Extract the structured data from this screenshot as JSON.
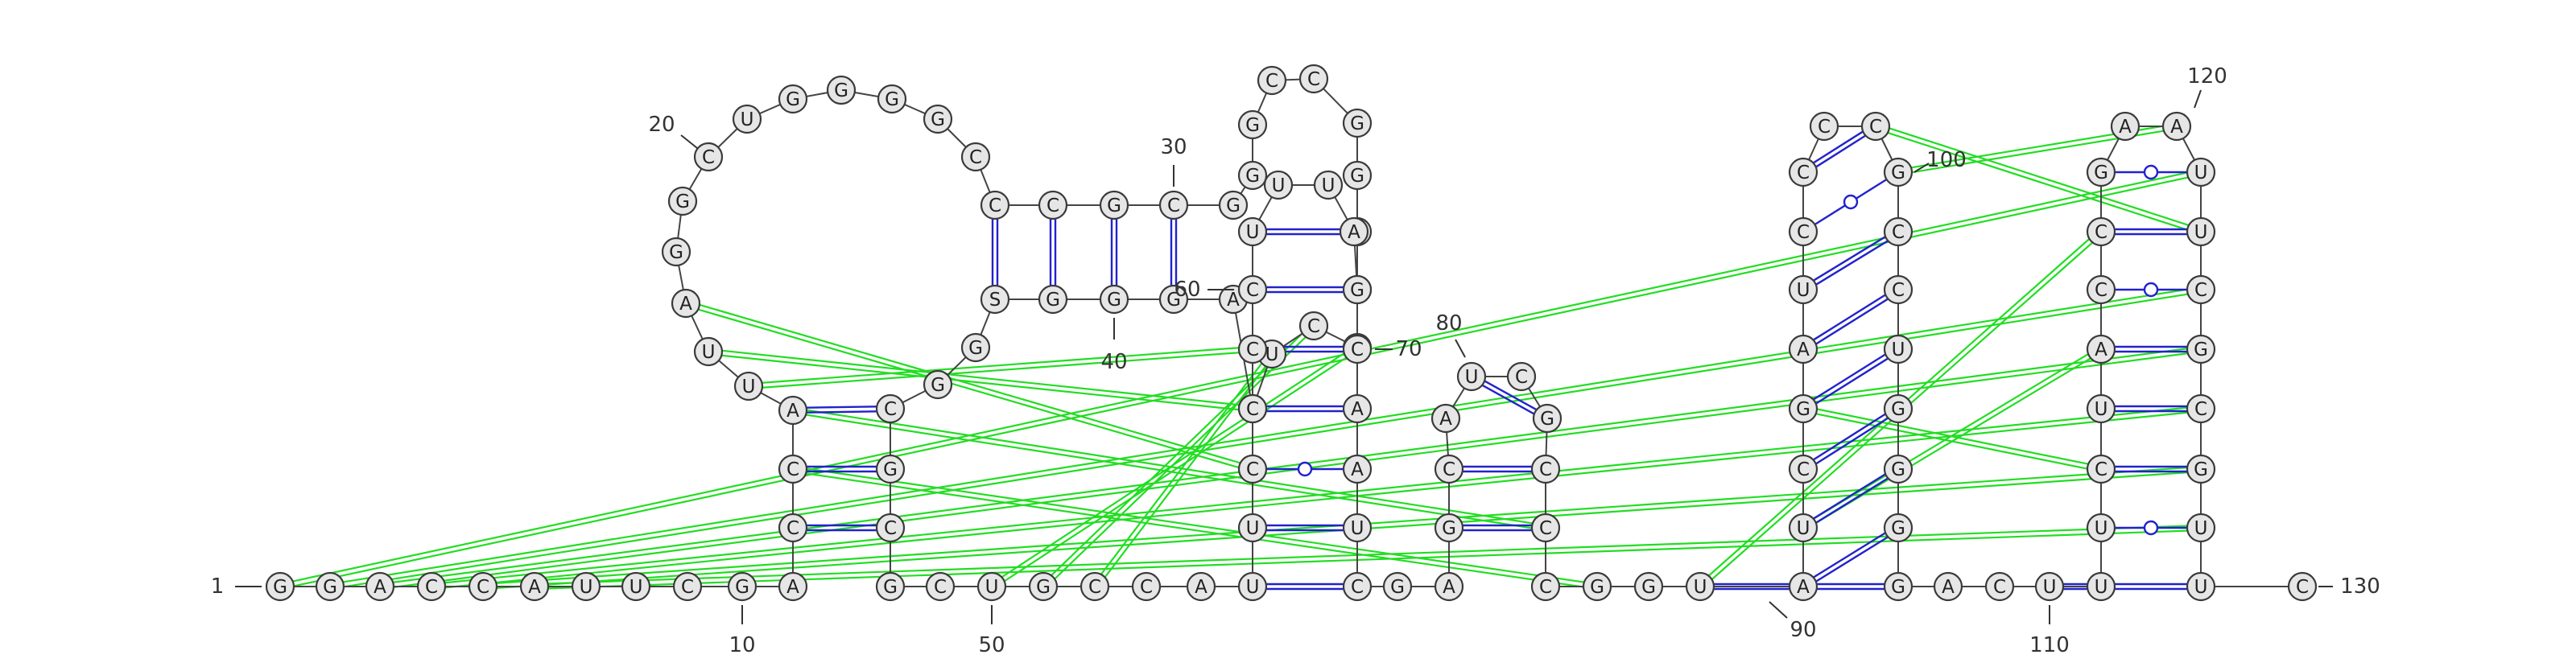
{
  "sequence": [
    "G",
    "G",
    "A",
    "C",
    "C",
    "A",
    "U",
    "U",
    "C",
    "G",
    "A",
    "C",
    "C",
    "A",
    "U",
    "U",
    "A",
    "G",
    "G",
    "C",
    "U",
    "G",
    "G",
    "G",
    "G",
    "C",
    "C",
    "C",
    "G",
    "C",
    "G",
    "G",
    "G",
    "C",
    "C",
    "G",
    "G",
    "C",
    "G",
    "G",
    "C",
    "U",
    "U",
    "A",
    "G",
    "G",
    "G",
    "S",
    "G",
    "G",
    "C",
    "G",
    "C",
    "G",
    "C",
    "U",
    "G",
    "C",
    "C",
    "A",
    "U",
    "U",
    "C",
    "C",
    "C",
    "C",
    "U",
    "U",
    "U",
    "A",
    "G",
    "C",
    "A",
    "A",
    "U",
    "C",
    "G",
    "A",
    "G",
    "C",
    "A",
    "U",
    "C",
    "G",
    "C",
    "C",
    "C",
    "G",
    "G",
    "U",
    "A",
    "U",
    "C",
    "G",
    "A",
    "U",
    "C",
    "C",
    "C",
    "C",
    "G",
    "C",
    "C",
    "U",
    "G",
    "G",
    "G",
    "G",
    "A",
    "C",
    "U",
    "U",
    "U",
    "C",
    "U",
    "A",
    "C",
    "C",
    "G",
    "A",
    "A",
    "U",
    "U",
    "C",
    "G",
    "C",
    "G",
    "U",
    "U",
    "C"
  ],
  "number_labels": [
    "1",
    "10",
    "20",
    "30",
    "40",
    "50",
    "60",
    "70",
    "80",
    "90",
    "100",
    "110",
    "120",
    "130"
  ],
  "colors": {
    "base_pair": "#2222cc",
    "pseudoknot": "#22dd22",
    "backbone": "#444444",
    "node_fill": "#e6e6e6"
  }
}
